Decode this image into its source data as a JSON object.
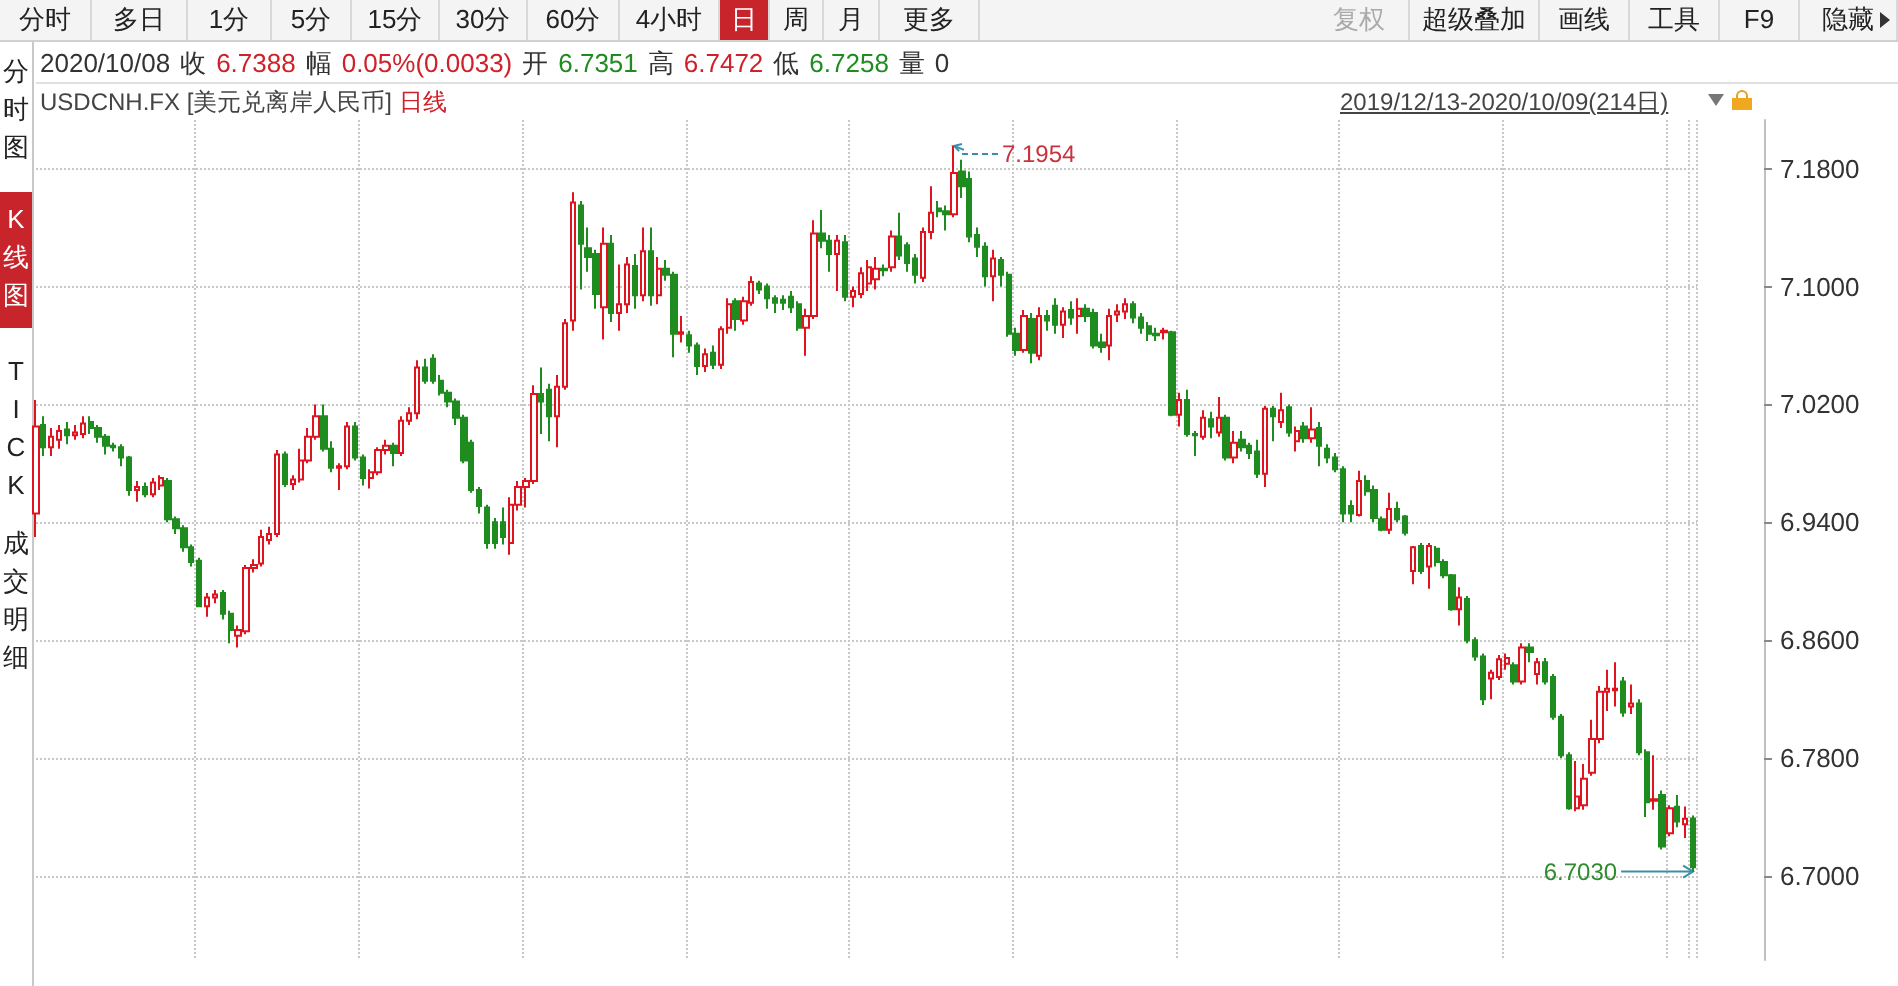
{
  "chart_data": {
    "type": "candlestick",
    "title": "USDCNH.FX [美元兑离岸人民币]",
    "subtitle": "日线",
    "categories": [
      null,
      null,
      null,
      null,
      null,
      null,
      null,
      null,
      null,
      null,
      null,
      null,
      null,
      null,
      null,
      null,
      null,
      null,
      null,
      null,
      null,
      null,
      null,
      null,
      null,
      null,
      null,
      null,
      null,
      null,
      null,
      null,
      null,
      null,
      null,
      null,
      null,
      null,
      null,
      null,
      null,
      null,
      null,
      null,
      null,
      null,
      null,
      null,
      null,
      null,
      null,
      null,
      null,
      null,
      null,
      null,
      null,
      null,
      null,
      null,
      null,
      null,
      null,
      null,
      null,
      null,
      null,
      null,
      null,
      null,
      null,
      null,
      null,
      null,
      null,
      null,
      null,
      null,
      null,
      null,
      null,
      null,
      null,
      null,
      null,
      null,
      null,
      null,
      null,
      null,
      null,
      null,
      null,
      null,
      null,
      null,
      null,
      null,
      null,
      null,
      null,
      null,
      null,
      null,
      null,
      null,
      null,
      null,
      null,
      null,
      null,
      null,
      null,
      null,
      null,
      null,
      null,
      null,
      null,
      null,
      null,
      null,
      null,
      null,
      null,
      null,
      null,
      null,
      null,
      null,
      null,
      null,
      null,
      null,
      null,
      null,
      null,
      null,
      null,
      null,
      null,
      null,
      null,
      null,
      null,
      null,
      null,
      null,
      null,
      null,
      null,
      null,
      null,
      null,
      null,
      null,
      null,
      null,
      null,
      null,
      null,
      null,
      null,
      null,
      null,
      null,
      null,
      null,
      null,
      null,
      null,
      null,
      null,
      null,
      null,
      null,
      null,
      null,
      null,
      null,
      null,
      null,
      null,
      null,
      null,
      null,
      null,
      null,
      null,
      null,
      null,
      null,
      null,
      null,
      null,
      null,
      null,
      null,
      null,
      null,
      null,
      null,
      null,
      null,
      null,
      null,
      null,
      null,
      null,
      null,
      null,
      null,
      null,
      null
    ],
    "ohlc": [
      [
        6.946,
        7.023,
        6.93,
        7.005
      ],
      [
        7.006,
        7.012,
        6.985,
        6.991
      ],
      [
        6.991,
        7.004,
        6.985,
        6.998
      ],
      [
        6.996,
        7.006,
        6.99,
        7.002
      ],
      [
        7.003,
        7.008,
        6.993,
        6.999
      ],
      [
        6.999,
        7.006,
        6.996,
        7.001
      ],
      [
        7.0,
        7.012,
        6.997,
        7.007
      ],
      [
        7.008,
        7.012,
        7.0,
        7.004
      ],
      [
        7.004,
        7.006,
        6.994,
        6.998
      ],
      [
        6.998,
        7.0,
        6.986,
        6.992
      ],
      [
        6.992,
        6.994,
        6.988,
        6.991
      ],
      [
        6.991,
        6.993,
        6.978,
        6.984
      ],
      [
        6.984,
        6.985,
        6.958,
        6.962
      ],
      [
        6.962,
        6.968,
        6.954,
        6.964
      ],
      [
        6.964,
        6.967,
        6.957,
        6.959
      ],
      [
        6.959,
        6.97,
        6.957,
        6.967
      ],
      [
        6.965,
        6.972,
        6.962,
        6.97
      ],
      [
        6.968,
        6.97,
        6.94,
        6.942
      ],
      [
        6.942,
        6.944,
        6.932,
        6.936
      ],
      [
        6.936,
        6.938,
        6.92,
        6.923
      ],
      [
        6.923,
        6.925,
        6.91,
        6.913
      ],
      [
        6.914,
        6.916,
        6.883,
        6.883
      ],
      [
        6.883,
        6.892,
        6.876,
        6.889
      ],
      [
        6.889,
        6.894,
        6.885,
        6.891
      ],
      [
        6.892,
        6.894,
        6.874,
        6.878
      ],
      [
        6.878,
        6.88,
        6.858,
        6.867
      ],
      [
        6.863,
        6.87,
        6.855,
        6.867
      ],
      [
        6.866,
        6.911,
        6.864,
        6.909
      ],
      [
        6.909,
        6.915,
        6.906,
        6.911
      ],
      [
        6.912,
        6.935,
        6.91,
        6.93
      ],
      [
        6.928,
        6.937,
        6.925,
        6.932
      ],
      [
        6.932,
        6.989,
        6.93,
        6.986
      ],
      [
        6.986,
        6.988,
        6.964,
        6.966
      ],
      [
        6.966,
        6.972,
        6.962,
        6.969
      ],
      [
        6.969,
        6.99,
        6.967,
        6.982
      ],
      [
        6.982,
        7.004,
        6.98,
        6.998
      ],
      [
        6.998,
        7.02,
        6.996,
        7.012
      ],
      [
        7.012,
        7.02,
        6.988,
        6.99
      ],
      [
        6.99,
        6.995,
        6.974,
        6.977
      ],
      [
        6.977,
        6.98,
        6.962,
        6.978
      ],
      [
        6.978,
        7.008,
        6.976,
        7.005
      ],
      [
        7.005,
        7.008,
        6.982,
        6.984
      ],
      [
        6.984,
        6.986,
        6.965,
        6.97
      ],
      [
        6.97,
        6.976,
        6.963,
        6.974
      ],
      [
        6.974,
        6.991,
        6.972,
        6.989
      ],
      [
        6.989,
        6.996,
        6.986,
        6.992
      ],
      [
        6.992,
        6.994,
        6.978,
        6.987
      ],
      [
        6.987,
        7.012,
        6.985,
        7.009
      ],
      [
        7.009,
        7.018,
        7.006,
        7.014
      ],
      [
        7.014,
        7.05,
        7.01,
        7.045
      ],
      [
        7.045,
        7.051,
        7.034,
        7.036
      ],
      [
        7.051,
        7.054,
        7.034,
        7.036
      ],
      [
        7.036,
        7.04,
        7.026,
        7.028
      ],
      [
        7.028,
        7.03,
        7.018,
        7.022
      ],
      [
        7.022,
        7.024,
        7.006,
        7.011
      ],
      [
        7.011,
        7.013,
        6.98,
        6.982
      ],
      [
        6.994,
        6.996,
        6.96,
        6.962
      ],
      [
        6.962,
        6.964,
        6.946,
        6.951
      ],
      [
        6.95,
        6.952,
        6.922,
        6.926
      ],
      [
        6.94,
        6.943,
        6.922,
        6.926
      ],
      [
        6.94,
        6.95,
        6.925,
        6.93
      ],
      [
        6.926,
        6.957,
        6.918,
        6.952
      ],
      [
        6.952,
        6.968,
        6.948,
        6.964
      ],
      [
        6.964,
        6.97,
        6.95,
        6.968
      ],
      [
        6.968,
        7.033,
        6.966,
        7.027
      ],
      [
        7.027,
        7.045,
        7.0,
        7.022
      ],
      [
        7.03,
        7.034,
        6.995,
        7.012
      ],
      [
        7.012,
        7.04,
        6.991,
        7.032
      ],
      [
        7.032,
        7.078,
        7.03,
        7.075
      ],
      [
        7.077,
        7.164,
        7.07,
        7.157
      ],
      [
        7.155,
        7.158,
        7.098,
        7.129
      ],
      [
        7.126,
        7.14,
        7.11,
        7.12
      ],
      [
        7.122,
        7.125,
        7.085,
        7.095
      ],
      [
        7.086,
        7.14,
        7.064,
        7.129
      ],
      [
        7.129,
        7.135,
        7.076,
        7.082
      ],
      [
        7.082,
        7.115,
        7.07,
        7.088
      ],
      [
        7.088,
        7.12,
        7.082,
        7.115
      ],
      [
        7.114,
        7.122,
        7.085,
        7.094
      ],
      [
        7.094,
        7.14,
        7.09,
        7.124
      ],
      [
        7.124,
        7.14,
        7.087,
        7.094
      ],
      [
        7.094,
        7.12,
        7.088,
        7.112
      ],
      [
        7.112,
        7.118,
        7.104,
        7.108
      ],
      [
        7.108,
        7.11,
        7.052,
        7.068
      ],
      [
        7.068,
        7.08,
        7.062,
        7.069
      ],
      [
        7.067,
        7.07,
        7.055,
        7.06
      ],
      [
        7.06,
        7.062,
        7.04,
        7.046
      ],
      [
        7.046,
        7.058,
        7.042,
        7.054
      ],
      [
        7.055,
        7.06,
        7.044,
        7.047
      ],
      [
        7.047,
        7.073,
        7.044,
        7.071
      ],
      [
        7.072,
        7.092,
        7.068,
        7.088
      ],
      [
        7.09,
        7.092,
        7.07,
        7.078
      ],
      [
        7.077,
        7.093,
        7.074,
        7.09
      ],
      [
        7.089,
        7.107,
        7.087,
        7.103
      ],
      [
        7.102,
        7.104,
        7.095,
        7.098
      ],
      [
        7.1,
        7.102,
        7.085,
        7.092
      ],
      [
        7.092,
        7.094,
        7.082,
        7.089
      ],
      [
        7.091,
        7.094,
        7.084,
        7.089
      ],
      [
        7.093,
        7.097,
        7.082,
        7.086
      ],
      [
        7.088,
        7.09,
        7.07,
        7.072
      ],
      [
        7.072,
        7.085,
        7.053,
        7.08
      ],
      [
        7.08,
        7.145,
        7.078,
        7.136
      ],
      [
        7.136,
        7.152,
        7.126,
        7.131
      ],
      [
        7.131,
        7.135,
        7.11,
        7.122
      ],
      [
        7.122,
        7.135,
        7.097,
        7.131
      ],
      [
        7.13,
        7.135,
        7.09,
        7.093
      ],
      [
        7.093,
        7.1,
        7.086,
        7.097
      ],
      [
        7.095,
        7.113,
        7.092,
        7.109
      ],
      [
        7.102,
        7.118,
        7.097,
        7.113
      ],
      [
        7.105,
        7.12,
        7.098,
        7.112
      ],
      [
        7.112,
        7.115,
        7.107,
        7.111
      ],
      [
        7.113,
        7.138,
        7.11,
        7.134
      ],
      [
        7.134,
        7.15,
        7.118,
        7.121
      ],
      [
        7.128,
        7.13,
        7.11,
        7.116
      ],
      [
        7.119,
        7.122,
        7.102,
        7.108
      ],
      [
        7.106,
        7.14,
        7.103,
        7.137
      ],
      [
        7.137,
        7.168,
        7.132,
        7.15
      ],
      [
        7.153,
        7.158,
        7.147,
        7.151
      ],
      [
        7.151,
        7.155,
        7.138,
        7.149
      ],
      [
        7.149,
        7.1954,
        7.147,
        7.177
      ],
      [
        7.178,
        7.186,
        7.16,
        7.168
      ],
      [
        7.173,
        7.178,
        7.13,
        7.134
      ],
      [
        7.135,
        7.14,
        7.12,
        7.127
      ],
      [
        7.127,
        7.13,
        7.1,
        7.107
      ],
      [
        7.107,
        7.125,
        7.09,
        7.119
      ],
      [
        7.118,
        7.12,
        7.1,
        7.108
      ],
      [
        7.108,
        7.11,
        7.066,
        7.068
      ],
      [
        7.068,
        7.072,
        7.053,
        7.057
      ],
      [
        7.057,
        7.084,
        7.055,
        7.08
      ],
      [
        7.078,
        7.082,
        7.048,
        7.055
      ],
      [
        7.053,
        7.086,
        7.05,
        7.08
      ],
      [
        7.08,
        7.084,
        7.07,
        7.077
      ],
      [
        7.087,
        7.092,
        7.068,
        7.074
      ],
      [
        7.074,
        7.086,
        7.065,
        7.083
      ],
      [
        7.084,
        7.09,
        7.074,
        7.079
      ],
      [
        7.08,
        7.092,
        7.068,
        7.085
      ],
      [
        7.085,
        7.088,
        7.076,
        7.08
      ],
      [
        7.082,
        7.085,
        7.058,
        7.06
      ],
      [
        7.062,
        7.068,
        7.055,
        7.059
      ],
      [
        7.06,
        7.085,
        7.05,
        7.08
      ],
      [
        7.081,
        7.088,
        7.076,
        7.083
      ],
      [
        7.083,
        7.092,
        7.078,
        7.088
      ],
      [
        7.088,
        7.09,
        7.075,
        7.079
      ],
      [
        7.079,
        7.082,
        7.068,
        7.072
      ],
      [
        7.073,
        7.076,
        7.063,
        7.068
      ],
      [
        7.068,
        7.072,
        7.063,
        7.067
      ],
      [
        7.069,
        7.072,
        7.064,
        7.07
      ],
      [
        7.069,
        7.07,
        7.012,
        7.013
      ],
      [
        7.013,
        7.028,
        7.005,
        7.023
      ],
      [
        7.023,
        7.03,
        6.998,
        7.0
      ],
      [
        7.0,
        7.002,
        6.985,
        6.999
      ],
      [
        6.998,
        7.016,
        6.996,
        7.011
      ],
      [
        7.01,
        7.015,
        6.997,
        7.005
      ],
      [
        7.001,
        7.025,
        6.998,
        7.011
      ],
      [
        7.011,
        7.013,
        6.982,
        6.984
      ],
      [
        6.984,
        7.002,
        6.98,
        6.994
      ],
      [
        6.996,
        7.002,
        6.988,
        6.991
      ],
      [
        6.992,
        6.994,
        6.983,
        6.987
      ],
      [
        6.988,
        6.996,
        6.97,
        6.973
      ],
      [
        6.973,
        7.019,
        6.964,
        7.017
      ],
      [
        7.017,
        7.019,
        6.995,
        7.012
      ],
      [
        7.008,
        7.028,
        7.004,
        7.016
      ],
      [
        7.018,
        7.02,
        6.998,
        7.001
      ],
      [
        6.995,
        7.005,
        6.988,
        7.002
      ],
      [
        7.005,
        7.008,
        6.994,
        6.997
      ],
      [
        6.997,
        7.018,
        6.994,
        7.003
      ],
      [
        7.004,
        7.008,
        6.978,
        6.992
      ],
      [
        6.99,
        6.993,
        6.98,
        6.984
      ],
      [
        6.984,
        6.987,
        6.974,
        6.976
      ],
      [
        6.976,
        6.978,
        6.94,
        6.946
      ],
      [
        6.951,
        6.955,
        6.94,
        6.946
      ],
      [
        6.945,
        6.975,
        6.944,
        6.968
      ],
      [
        6.968,
        6.972,
        6.958,
        6.961
      ],
      [
        6.962,
        6.965,
        6.94,
        6.943
      ],
      [
        6.942,
        6.944,
        6.934,
        6.935
      ],
      [
        6.935,
        6.96,
        6.932,
        6.949
      ],
      [
        6.949,
        6.954,
        6.94,
        6.942
      ],
      [
        6.944,
        6.945,
        6.931,
        6.933
      ],
      [
        6.907,
        6.924,
        6.898,
        6.923
      ],
      [
        6.924,
        6.926,
        6.905,
        6.907
      ],
      [
        6.91,
        6.926,
        6.895,
        6.924
      ],
      [
        6.922,
        6.924,
        6.91,
        6.913
      ],
      [
        6.913,
        6.915,
        6.902,
        6.904
      ],
      [
        6.904,
        6.905,
        6.88,
        6.881
      ],
      [
        6.881,
        6.896,
        6.87,
        6.889
      ],
      [
        6.888,
        6.89,
        6.858,
        6.86
      ],
      [
        6.86,
        6.862,
        6.846,
        6.849
      ],
      [
        6.849,
        6.851,
        6.816,
        6.82
      ],
      [
        6.834,
        6.84,
        6.82,
        6.838
      ],
      [
        6.835,
        6.85,
        6.833,
        6.847
      ],
      [
        6.844,
        6.851,
        6.84,
        6.848
      ],
      [
        6.843,
        6.845,
        6.83,
        6.832
      ],
      [
        6.832,
        6.858,
        6.83,
        6.855
      ],
      [
        6.855,
        6.858,
        6.845,
        6.852
      ],
      [
        6.837,
        6.848,
        6.83,
        6.845
      ],
      [
        6.845,
        6.848,
        6.83,
        6.832
      ],
      [
        6.835,
        6.837,
        6.806,
        6.808
      ],
      [
        6.808,
        6.81,
        6.78,
        6.782
      ],
      [
        6.782,
        6.784,
        6.745,
        6.746
      ],
      [
        6.746,
        6.778,
        6.744,
        6.754
      ],
      [
        6.748,
        6.776,
        6.745,
        6.766
      ],
      [
        6.77,
        6.806,
        6.768,
        6.793
      ],
      [
        6.793,
        6.829,
        6.79,
        6.825
      ],
      [
        6.825,
        6.84,
        6.812,
        6.827
      ],
      [
        6.826,
        6.845,
        6.815,
        6.827
      ],
      [
        6.832,
        6.835,
        6.808,
        6.811
      ],
      [
        6.815,
        6.83,
        6.81,
        6.817
      ],
      [
        6.817,
        6.82,
        6.782,
        6.784
      ],
      [
        6.784,
        6.786,
        6.74,
        6.75
      ],
      [
        6.751,
        6.782,
        6.745,
        6.752
      ],
      [
        6.755,
        6.758,
        6.718,
        6.72
      ],
      [
        6.729,
        6.748,
        6.727,
        6.746
      ],
      [
        6.747,
        6.755,
        6.733,
        6.737
      ],
      [
        6.7351,
        6.7472,
        6.7258,
        6.7388
      ],
      [
        6.739,
        6.741,
        6.703,
        6.706
      ]
    ],
    "colors": [
      "#e0141e",
      "#1e8c1e",
      "#e0141e",
      "#e0141e",
      "#1e8c1e",
      "#e0141e",
      "#e0141e",
      "#1e8c1e",
      "#1e8c1e",
      "#1e8c1e",
      "#1e8c1e",
      "#1e8c1e",
      "#1e8c1e",
      "#e0141e",
      "#1e8c1e",
      "#e0141e",
      "#e0141e",
      "#1e8c1e",
      "#1e8c1e",
      "#1e8c1e",
      "#1e8c1e",
      "#1e8c1e",
      "#e0141e",
      "#e0141e",
      "#1e8c1e",
      "#1e8c1e",
      "#e0141e",
      "#e0141e",
      "#e0141e",
      "#e0141e",
      "#e0141e",
      "#e0141e",
      "#1e8c1e",
      "#e0141e",
      "#e0141e",
      "#e0141e",
      "#e0141e",
      "#1e8c1e",
      "#1e8c1e",
      "#e0141e",
      "#e0141e",
      "#1e8c1e",
      "#1e8c1e",
      "#e0141e",
      "#e0141e",
      "#e0141e",
      "#1e8c1e",
      "#e0141e",
      "#e0141e",
      "#e0141e",
      "#1e8c1e",
      "#1e8c1e",
      "#1e8c1e",
      "#1e8c1e",
      "#1e8c1e",
      "#1e8c1e",
      "#1e8c1e",
      "#1e8c1e",
      "#1e8c1e",
      "#1e8c1e",
      "#1e8c1e",
      "#e0141e",
      "#e0141e",
      "#e0141e",
      "#e0141e",
      "#1e8c1e",
      "#1e8c1e",
      "#e0141e",
      "#e0141e",
      "#e0141e",
      "#1e8c1e",
      "#1e8c1e",
      "#1e8c1e",
      "#e0141e",
      "#1e8c1e",
      "#e0141e",
      "#e0141e",
      "#1e8c1e",
      "#e0141e",
      "#1e8c1e",
      "#e0141e",
      "#1e8c1e",
      "#1e8c1e",
      "#e0141e",
      "#1e8c1e",
      "#1e8c1e",
      "#e0141e",
      "#1e8c1e",
      "#e0141e",
      "#e0141e",
      "#1e8c1e",
      "#e0141e",
      "#e0141e",
      "#1e8c1e",
      "#1e8c1e",
      "#1e8c1e",
      "#1e8c1e",
      "#1e8c1e",
      "#1e8c1e",
      "#e0141e",
      "#e0141e",
      "#1e8c1e",
      "#1e8c1e",
      "#e0141e",
      "#1e8c1e",
      "#e0141e",
      "#e0141e",
      "#e0141e",
      "#e0141e",
      "#1e8c1e",
      "#e0141e",
      "#1e8c1e",
      "#1e8c1e",
      "#1e8c1e",
      "#e0141e",
      "#e0141e",
      "#1e8c1e",
      "#1e8c1e",
      "#e0141e",
      "#1e8c1e",
      "#1e8c1e",
      "#1e8c1e",
      "#1e8c1e",
      "#e0141e",
      "#1e8c1e",
      "#1e8c1e",
      "#1e8c1e",
      "#e0141e",
      "#1e8c1e",
      "#e0141e",
      "#1e8c1e",
      "#1e8c1e",
      "#e0141e",
      "#1e8c1e",
      "#e0141e",
      "#1e8c1e",
      "#1e8c1e",
      "#1e8c1e",
      "#e0141e",
      "#e0141e",
      "#e0141e",
      "#1e8c1e",
      "#1e8c1e",
      "#1e8c1e",
      "#1e8c1e",
      "#e0141e",
      "#1e8c1e",
      "#e0141e",
      "#1e8c1e",
      "#1e8c1e",
      "#e0141e",
      "#1e8c1e",
      "#e0141e",
      "#1e8c1e",
      "#e0141e",
      "#1e8c1e",
      "#1e8c1e",
      "#1e8c1e",
      "#e0141e",
      "#1e8c1e",
      "#e0141e",
      "#1e8c1e",
      "#e0141e",
      "#1e8c1e",
      "#e0141e",
      "#1e8c1e",
      "#1e8c1e",
      "#1e8c1e",
      "#1e8c1e",
      "#1e8c1e",
      "#e0141e",
      "#1e8c1e",
      "#1e8c1e",
      "#1e8c1e",
      "#e0141e",
      "#1e8c1e",
      "#1e8c1e",
      "#e0141e",
      "#1e8c1e",
      "#e0141e",
      "#1e8c1e",
      "#1e8c1e",
      "#1e8c1e",
      "#e0141e",
      "#1e8c1e",
      "#1e8c1e",
      "#1e8c1e",
      "#e0141e",
      "#e0141e",
      "#e0141e",
      "#1e8c1e",
      "#e0141e",
      "#1e8c1e",
      "#e0141e",
      "#1e8c1e",
      "#1e8c1e",
      "#1e8c1e",
      "#1e8c1e",
      "#e0141e",
      "#e0141e",
      "#e0141e",
      "#e0141e",
      "#e0141e",
      "#e0141e",
      "#1e8c1e",
      "#e0141e",
      "#1e8c1e",
      "#1e8c1e",
      "#e0141e",
      "#1e8c1e",
      "#e0141e",
      "#1e8c1e",
      "#e0141e",
      "#1e8c1e"
    ],
    "ylim": [
      6.643,
      7.213
    ],
    "yticks": [
      {
        "value": 6.7,
        "label": "6.7000"
      },
      {
        "value": 6.78,
        "label": "6.7800"
      },
      {
        "value": 6.86,
        "label": "6.8600"
      },
      {
        "value": 6.94,
        "label": "6.9400"
      },
      {
        "value": 7.02,
        "label": "7.0200"
      },
      {
        "value": 7.1,
        "label": "7.1000"
      },
      {
        "value": 7.18,
        "label": "7.1800"
      }
    ],
    "grid": true,
    "tick_labels": "y",
    "annotations": [
      "分时",
      "多日",
      "1分",
      "5分",
      "15分",
      "30分",
      "60分",
      "4小时",
      "日",
      "周",
      "月",
      "更多",
      "复权",
      "超级叠加",
      "画线",
      "工具",
      "F9",
      "隐藏",
      "分时图",
      "K线图",
      "TICK",
      "成交明细",
      "2020/10/08 收 6.7388 幅 0.05%(0.0033) 开 6.7351 高 6.7472 低 6.7258 量 0",
      "2019/12/13-2020/10/09(214日)",
      "7.1954",
      "6.7030"
    ]
  }
}
